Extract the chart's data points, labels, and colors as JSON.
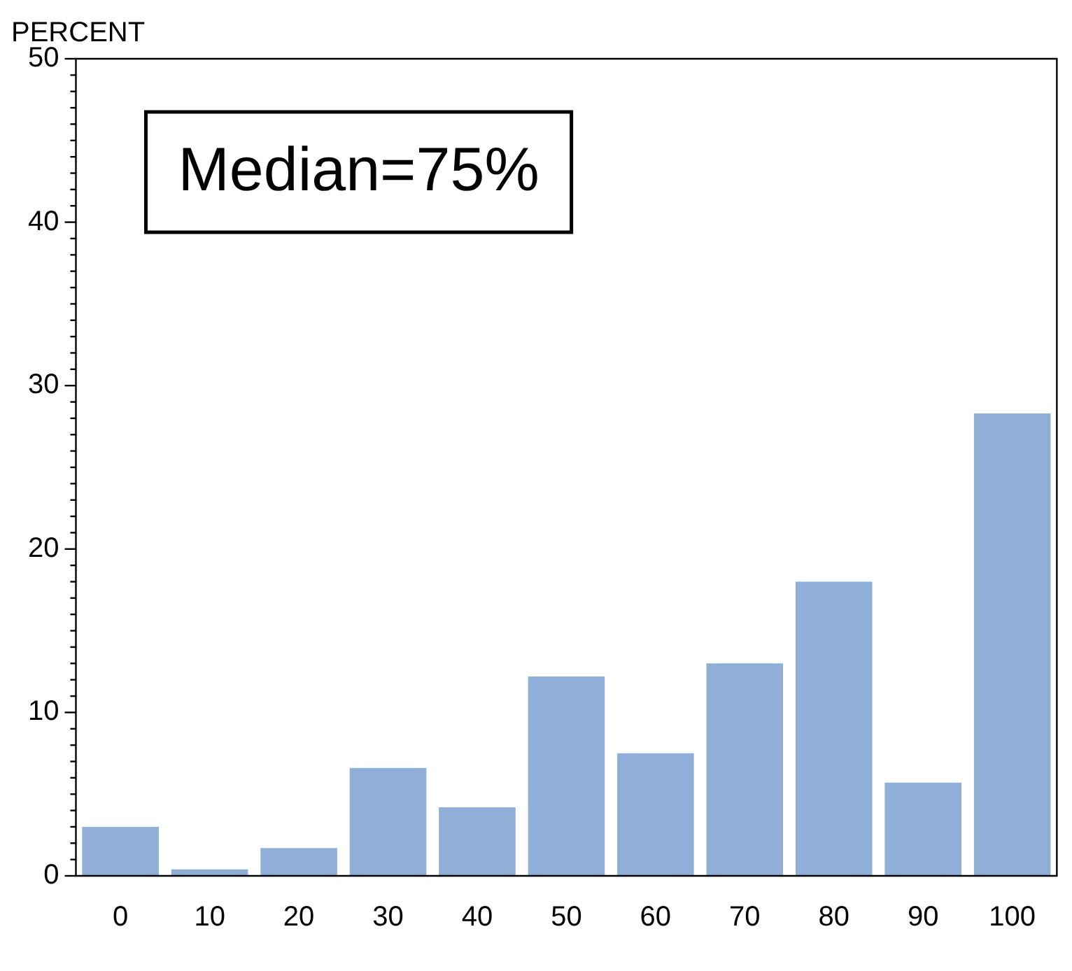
{
  "chart_data": {
    "type": "bar",
    "ylabel": "PERCENT",
    "categories": [
      "0",
      "10",
      "20",
      "30",
      "40",
      "50",
      "60",
      "70",
      "80",
      "90",
      "100"
    ],
    "values": [
      3.0,
      0.4,
      1.7,
      6.6,
      4.2,
      12.2,
      7.5,
      13.0,
      18.0,
      5.7,
      28.3
    ],
    "color": "#8fafd8",
    "ylim": [
      0,
      50
    ],
    "yticks": [
      0,
      {
        "value": 1,
        "label": null
      },
      {
        "value": 2,
        "label": null
      },
      {
        "value": 3,
        "label": null
      },
      {
        "value": 4,
        "label": null
      },
      {
        "value": 5,
        "label": null
      },
      {
        "value": 6,
        "label": null
      },
      {
        "value": 7,
        "label": null
      },
      {
        "value": 8,
        "label": null
      },
      {
        "value": 9,
        "label": null
      },
      10,
      {
        "value": 11,
        "label": null
      },
      {
        "value": 12,
        "label": null
      },
      {
        "value": 13,
        "label": null
      },
      {
        "value": 14,
        "label": null
      },
      {
        "value": 15,
        "label": null
      },
      {
        "value": 16,
        "label": null
      },
      {
        "value": 17,
        "label": null
      },
      {
        "value": 18,
        "label": null
      },
      {
        "value": 19,
        "label": null
      },
      20,
      {
        "value": 21,
        "label": null
      },
      {
        "value": 22,
        "label": null
      },
      {
        "value": 23,
        "label": null
      },
      {
        "value": 24,
        "label": null
      },
      {
        "value": 25,
        "label": null
      },
      {
        "value": 26,
        "label": null
      },
      {
        "value": 27,
        "label": null
      },
      {
        "value": 28,
        "label": null
      },
      {
        "value": 29,
        "label": null
      },
      30,
      {
        "value": 31,
        "label": null
      },
      {
        "value": 32,
        "label": null
      },
      {
        "value": 33,
        "label": null
      },
      {
        "value": 34,
        "label": null
      },
      {
        "value": 35,
        "label": null
      },
      {
        "value": 36,
        "label": null
      },
      {
        "value": 37,
        "label": null
      },
      {
        "value": 38,
        "label": null
      },
      {
        "value": 39,
        "label": null
      },
      40,
      {
        "value": 41,
        "label": null
      },
      {
        "value": 42,
        "label": null
      },
      {
        "value": 43,
        "label": null
      },
      {
        "value": 44,
        "label": null
      },
      {
        "value": 45,
        "label": null
      },
      {
        "value": 46,
        "label": null
      },
      {
        "value": 47,
        "label": null
      },
      {
        "value": 48,
        "label": null
      },
      {
        "value": 49,
        "label": null
      },
      50
    ],
    "annotations": [
      "Median=75%"
    ],
    "grid": false,
    "legend": false
  }
}
